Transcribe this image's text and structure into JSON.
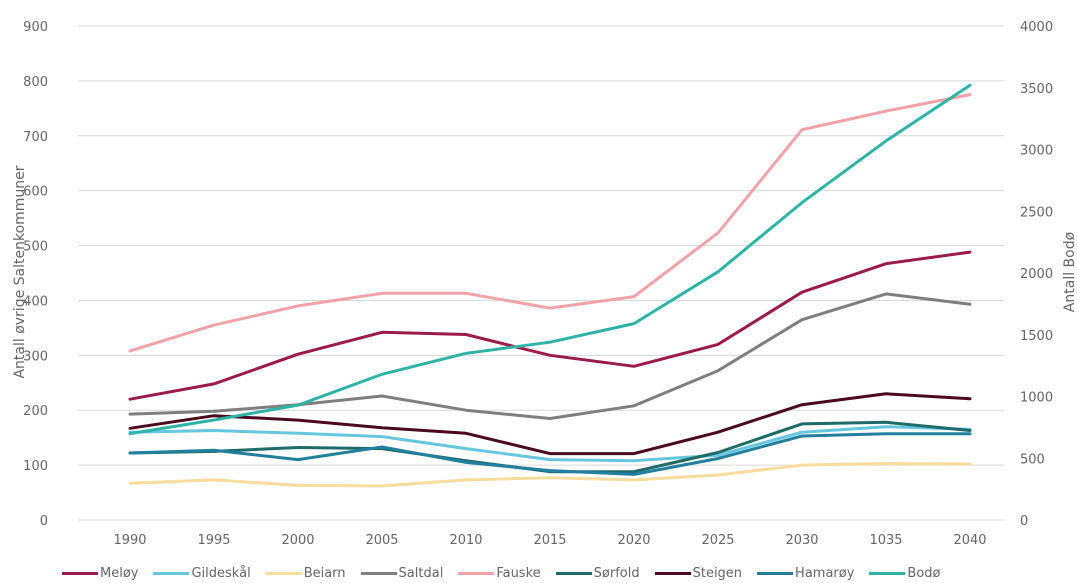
{
  "chart_data": {
    "type": "line",
    "xlabel": "",
    "ylabel": "Antall øvrige Saltenkommuner",
    "y2label": "Antall Bodø",
    "categories": [
      "1990",
      "1995",
      "2000",
      "2005",
      "2010",
      "2015",
      "2020",
      "2025",
      "2030",
      "1035",
      "2040"
    ],
    "ylim": [
      0,
      900
    ],
    "y2lim": [
      0,
      4000
    ],
    "yticks": [
      "0",
      "100",
      "200",
      "300",
      "400",
      "500",
      "600",
      "700",
      "800",
      "900"
    ],
    "y2ticks": [
      "0",
      "500",
      "1000",
      "1500",
      "2000",
      "2500",
      "3000",
      "3500",
      "4000"
    ],
    "grid": true,
    "legend_position": "bottom",
    "series": [
      {
        "name": "Meløy",
        "color": "#9b1b4a",
        "axis": "left",
        "values": [
          220,
          248,
          302,
          342,
          338,
          300,
          280,
          320,
          415,
          467,
          488
        ]
      },
      {
        "name": "Gildeskål",
        "color": "#67c6e0",
        "axis": "left",
        "values": [
          160,
          163,
          158,
          152,
          130,
          110,
          108,
          118,
          160,
          170,
          165
        ]
      },
      {
        "name": "Beiarn",
        "color": "#f6dc9f",
        "axis": "left",
        "values": [
          67,
          73,
          63,
          62,
          73,
          77,
          73,
          82,
          100,
          103,
          102
        ]
      },
      {
        "name": "Saltdal",
        "color": "#7f7f7f",
        "axis": "left",
        "values": [
          193,
          198,
          210,
          226,
          200,
          185,
          208,
          272,
          365,
          412,
          393
        ]
      },
      {
        "name": "Fauske",
        "color": "#f2a3aa",
        "axis": "left",
        "values": [
          308,
          355,
          390,
          413,
          413,
          386,
          407,
          523,
          711,
          745,
          775
        ]
      },
      {
        "name": "Sørfold",
        "color": "#1e6b68",
        "axis": "left",
        "values": [
          122,
          125,
          132,
          130,
          108,
          88,
          88,
          123,
          175,
          178,
          163
        ]
      },
      {
        "name": "Steigen",
        "color": "#4b0a1f",
        "axis": "left",
        "values": [
          167,
          190,
          182,
          168,
          158,
          121,
          121,
          160,
          210,
          230,
          221
        ]
      },
      {
        "name": "Hamarøy",
        "color": "#237f9e",
        "axis": "left",
        "values": [
          122,
          127,
          110,
          133,
          105,
          90,
          83,
          112,
          153,
          157,
          157
        ]
      },
      {
        "name": "Bodø",
        "color": "#2fb3a6",
        "axis": "right",
        "values": [
          700,
          810,
          930,
          1180,
          1350,
          1440,
          1590,
          2010,
          2570,
          3070,
          3520
        ]
      }
    ]
  }
}
